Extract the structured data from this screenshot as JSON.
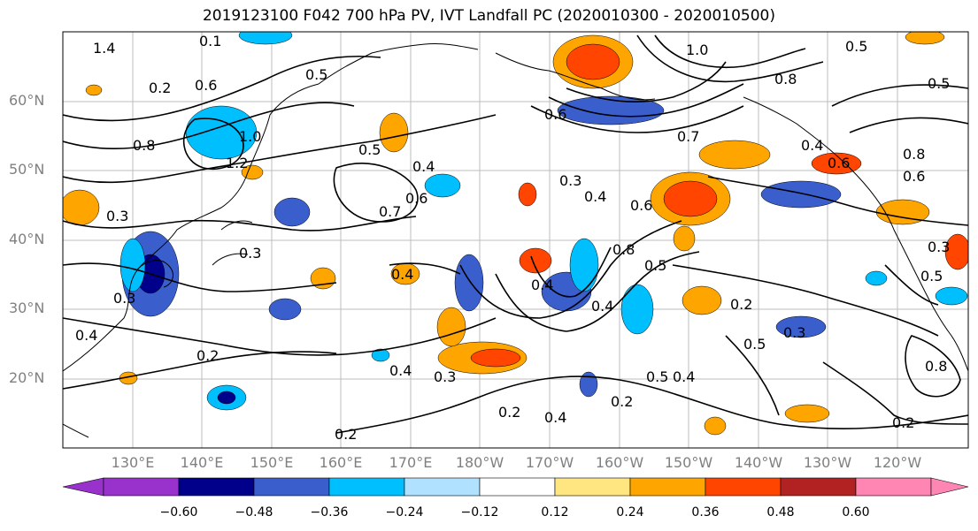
{
  "title": "2019123100 F042 700 hPa PV, IVT Landfall PC (2020010300 - 2020010500)",
  "lat_labels": [
    "60°N",
    "50°N",
    "40°N",
    "30°N",
    "20°N"
  ],
  "lon_labels": [
    "130°E",
    "140°E",
    "150°E",
    "160°E",
    "170°E",
    "180°W",
    "170°W",
    "160°W",
    "150°W",
    "140°W",
    "130°W",
    "120°W"
  ],
  "colorbar": {
    "tick_labels": [
      "−0.60",
      "−0.48",
      "−0.36",
      "−0.24",
      "−0.12",
      "0.12",
      "0.24",
      "0.36",
      "0.48",
      "0.60"
    ],
    "colors": [
      "#9932cc",
      "#00008b",
      "#3a5fcd",
      "#00bfff",
      "#b0e2ff",
      "#ffffff",
      "#ffe680",
      "#ffa500",
      "#ff4500",
      "#b22222",
      "#ff85b3"
    ]
  },
  "contour_labels": [
    "1.4",
    "0.1",
    "0.6",
    "0.5",
    "0.8",
    "0.2",
    "1.0",
    "1.2",
    "0.5",
    "0.4",
    "0.3",
    "0.7",
    "0.6",
    "0.3",
    "0.4",
    "0.6",
    "0.8",
    "1.0",
    "0.5",
    "0.7",
    "0.8",
    "0.6",
    "0.4",
    "0.4",
    "0.4",
    "0.5",
    "0.4",
    "0.2",
    "0.3",
    "0.2",
    "0.4",
    "0.3",
    "0.2",
    "0.3",
    "0.2",
    "0.4",
    "0.5",
    "0.4",
    "0.2",
    "0.5",
    "0.3",
    "0.2",
    "0.3",
    "0.5",
    "0.8",
    "0.6",
    "0.4",
    "0.6",
    "0.8",
    "0.5"
  ]
}
